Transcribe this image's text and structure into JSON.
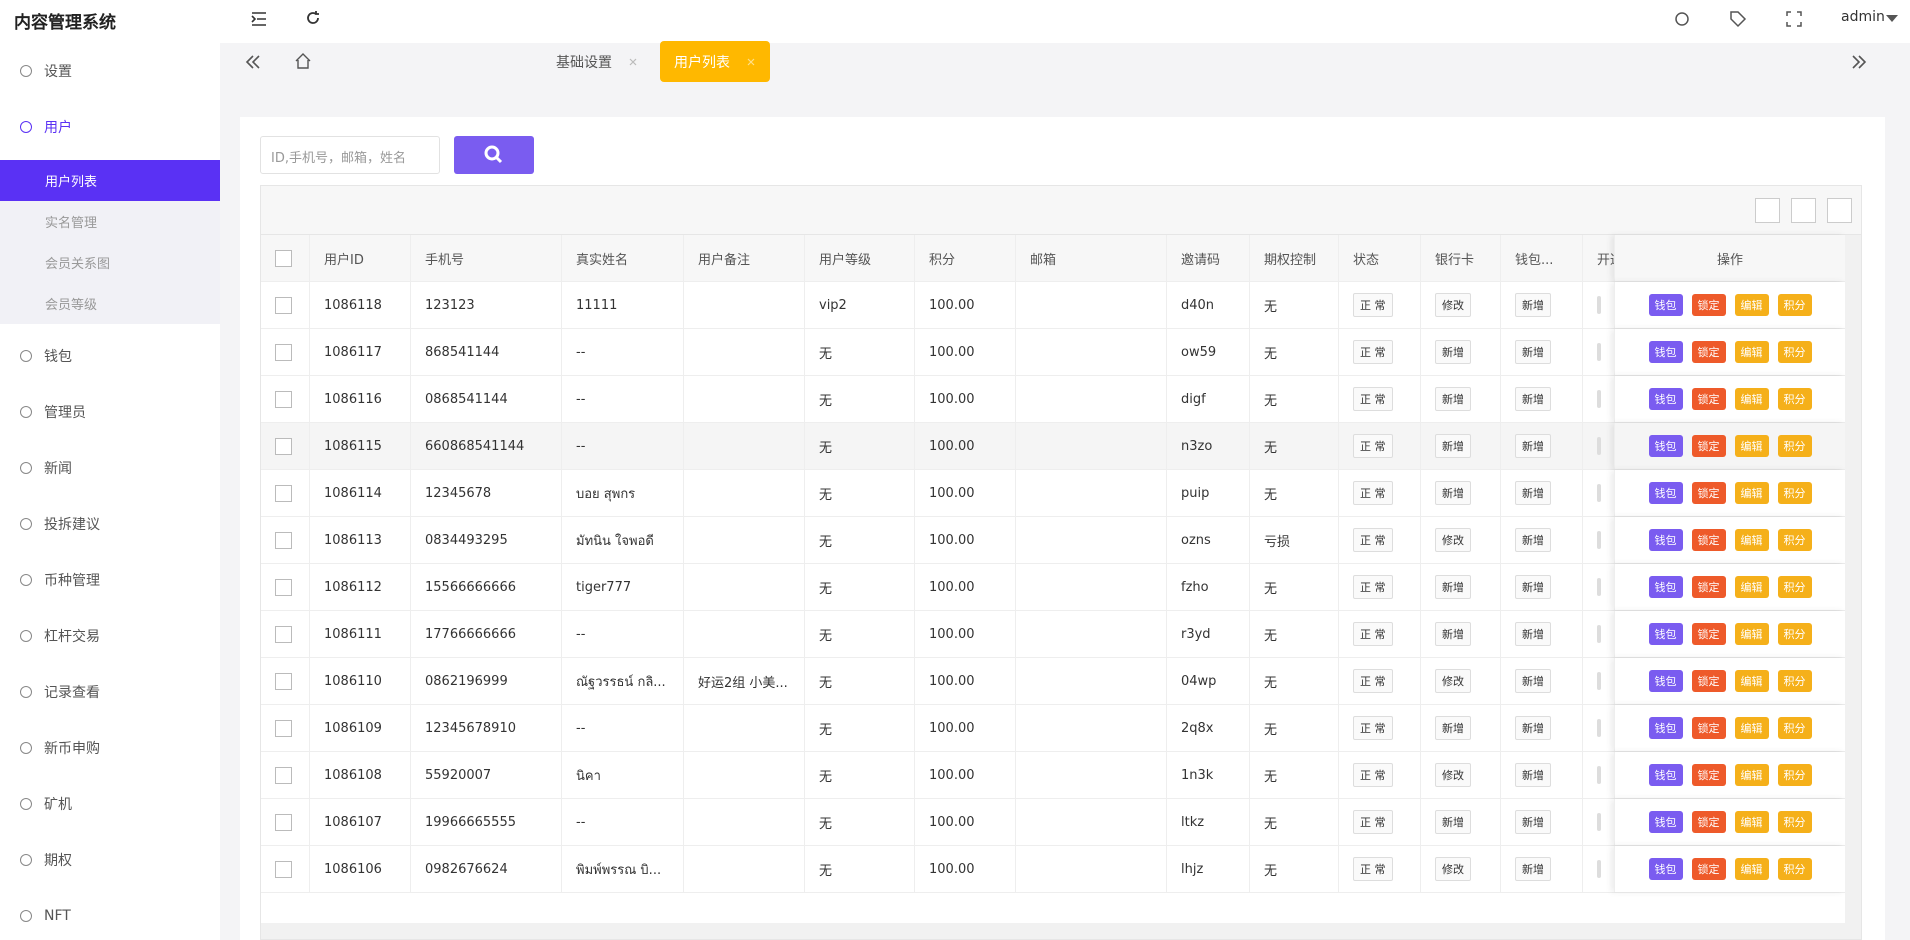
{
  "header": {
    "title": "内容管理系统",
    "user": "admin"
  },
  "sidebar": {
    "items": [
      {
        "label": "设置"
      },
      {
        "label": "用户",
        "children": [
          "用户列表",
          "实名管理",
          "会员关系图",
          "会员等级"
        ]
      },
      {
        "label": "钱包"
      },
      {
        "label": "管理员"
      },
      {
        "label": "新闻"
      },
      {
        "label": "投拆建议"
      },
      {
        "label": "币种管理"
      },
      {
        "label": "杠杆交易"
      },
      {
        "label": "记录查看"
      },
      {
        "label": "新币申购"
      },
      {
        "label": "矿机"
      },
      {
        "label": "期权"
      },
      {
        "label": "NFT"
      }
    ]
  },
  "tabs": [
    "基础设置",
    "用户列表"
  ],
  "search": {
    "placeholder": "ID,手机号，邮箱，姓名"
  },
  "table": {
    "columns": [
      "用户ID",
      "手机号",
      "真实姓名",
      "用户备注",
      "用户等级",
      "积分",
      "邮箱",
      "邀请码",
      "期权控制",
      "状态",
      "银行卡",
      "钱包...",
      "开通",
      "操作"
    ],
    "actions": [
      "钱包",
      "锁定",
      "编辑",
      "积分"
    ],
    "rows": [
      {
        "id": "1086118",
        "phone": "123123",
        "name": "11111",
        "level": "vip2",
        "points": "100.00",
        "code": "d40n",
        "option": "无",
        "status": "正 常",
        "bank": "修改",
        "wallet": "新增"
      },
      {
        "id": "1086117",
        "phone": "868541144",
        "name": "--",
        "level": "无",
        "points": "100.00",
        "code": "ow59",
        "option": "无",
        "status": "正 常",
        "bank": "新增",
        "wallet": "新增"
      },
      {
        "id": "1086116",
        "phone": "0868541144",
        "name": "--",
        "level": "无",
        "points": "100.00",
        "code": "digf",
        "option": "无",
        "status": "正 常",
        "bank": "新增",
        "wallet": "新增"
      },
      {
        "id": "1086115",
        "phone": "660868541144",
        "name": "--",
        "level": "无",
        "points": "100.00",
        "code": "n3zo",
        "option": "无",
        "status": "正 常",
        "bank": "新增",
        "wallet": "新增"
      },
      {
        "id": "1086114",
        "phone": "12345678",
        "name": "บอย สุพกร",
        "level": "无",
        "points": "100.00",
        "code": "puip",
        "option": "无",
        "status": "正 常",
        "bank": "新增",
        "wallet": "新增"
      },
      {
        "id": "1086113",
        "phone": "0834493295",
        "name": "มัทนิน ใจพอดี",
        "level": "无",
        "points": "100.00",
        "code": "ozns",
        "option": "亏损",
        "status": "正 常",
        "bank": "修改",
        "wallet": "新增"
      },
      {
        "id": "1086112",
        "phone": "15566666666",
        "name": "tiger777",
        "level": "无",
        "points": "100.00",
        "code": "fzho",
        "option": "无",
        "status": "正 常",
        "bank": "新增",
        "wallet": "新增"
      },
      {
        "id": "1086111",
        "phone": "17766666666",
        "name": "--",
        "level": "无",
        "points": "100.00",
        "code": "r3yd",
        "option": "无",
        "status": "正 常",
        "bank": "新增",
        "wallet": "新增"
      },
      {
        "id": "1086110",
        "phone": "0862196999",
        "name": "ณัฐวรรธน์ กลิ...",
        "note": "好运2组 小美...",
        "level": "无",
        "points": "100.00",
        "code": "04wp",
        "option": "无",
        "status": "正 常",
        "bank": "修改",
        "wallet": "新增"
      },
      {
        "id": "1086109",
        "phone": "12345678910",
        "name": "--",
        "level": "无",
        "points": "100.00",
        "code": "2q8x",
        "option": "无",
        "status": "正 常",
        "bank": "新增",
        "wallet": "新增"
      },
      {
        "id": "1086108",
        "phone": "55920007",
        "name": "นิคา",
        "level": "无",
        "points": "100.00",
        "code": "1n3k",
        "option": "无",
        "status": "正 常",
        "bank": "修改",
        "wallet": "新增"
      },
      {
        "id": "1086107",
        "phone": "19966665555",
        "name": "--",
        "level": "无",
        "points": "100.00",
        "code": "ltkz",
        "option": "无",
        "status": "正 常",
        "bank": "新增",
        "wallet": "新增"
      },
      {
        "id": "1086106",
        "phone": "0982676624",
        "name": "พิมพ์พรรณ บิ...",
        "level": "无",
        "points": "100.00",
        "code": "lhjz",
        "option": "无",
        "status": "正 常",
        "bank": "修改",
        "wallet": "新增"
      }
    ]
  }
}
